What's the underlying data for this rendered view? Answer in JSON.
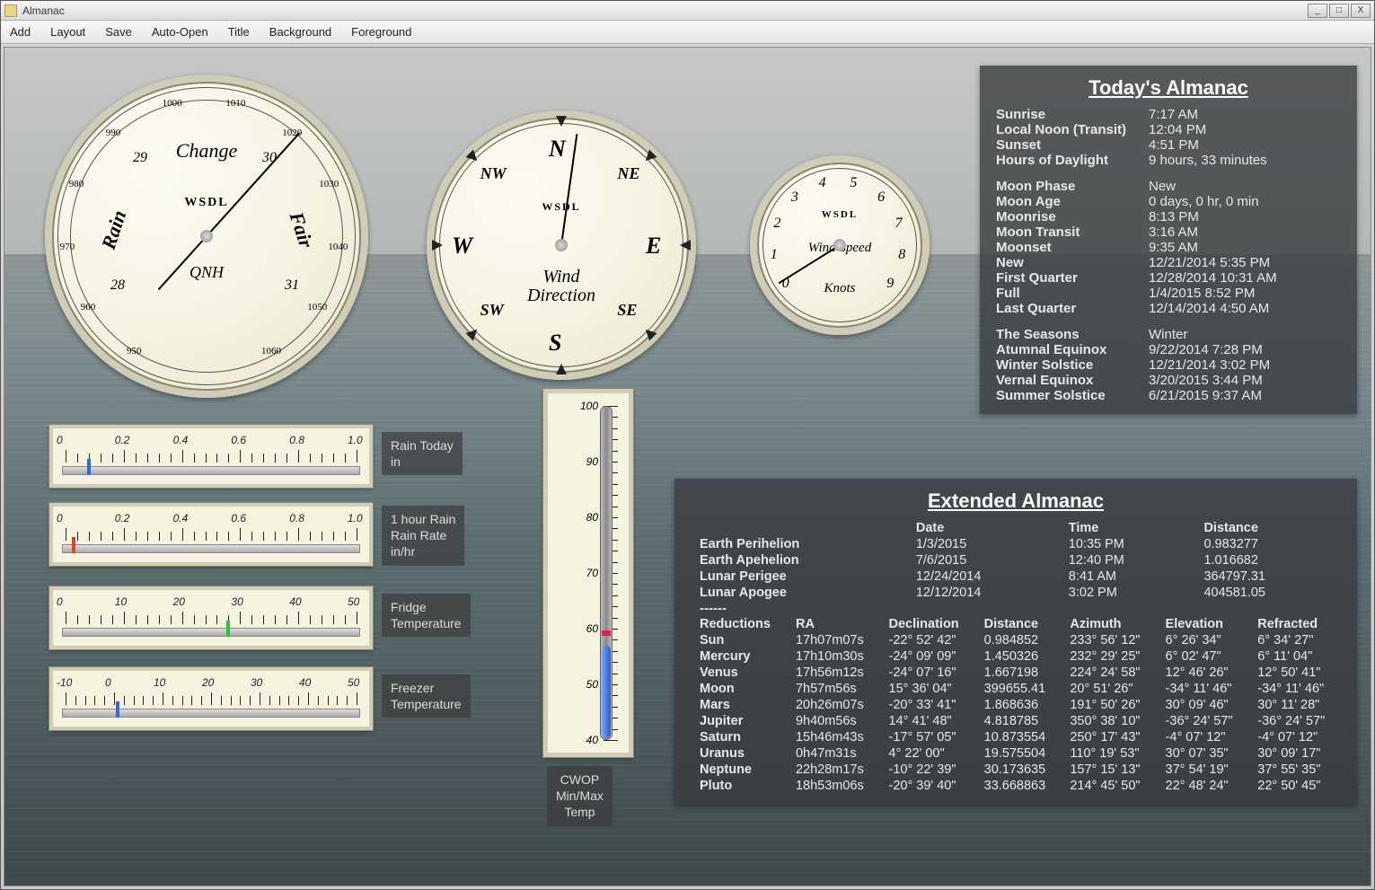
{
  "window": {
    "title": "Almanac"
  },
  "menu": [
    "Add",
    "Layout",
    "Save",
    "Auto-Open",
    "Title",
    "Background",
    "Foreground"
  ],
  "gauges": {
    "barometer": {
      "brand": "WSDL",
      "label": "QNH",
      "top_word": "Change",
      "left_word": "Rain",
      "right_word": "Fair",
      "needle_deg": 42,
      "outer_scale": [
        "950",
        "960",
        "970",
        "980",
        "990",
        "1000",
        "1010",
        "1020",
        "1030",
        "1040",
        "1050",
        "1060"
      ],
      "inner_scale": [
        "28",
        "29",
        "30",
        "31"
      ]
    },
    "winddir": {
      "brand": "WSDL",
      "label": "Wind Direction",
      "sub": "Direction",
      "needle_deg": 8,
      "cardinals": [
        "N",
        "NE",
        "E",
        "SE",
        "S",
        "SW",
        "W",
        "NW"
      ]
    },
    "windspeed": {
      "brand": "WSDL",
      "label": "Wind Speed",
      "units": "Knots",
      "needle_deg": 238,
      "scale": [
        "0",
        "1",
        "2",
        "3",
        "4",
        "5",
        "6",
        "7",
        "8",
        "9"
      ]
    }
  },
  "linear": {
    "rain_today": {
      "title": "Rain Today",
      "units": "in",
      "scale": [
        "0",
        "0.2",
        "0.4",
        "0.6",
        "0.8",
        "1.0"
      ],
      "marker_pct": 8,
      "marker_color": "#3a66d0"
    },
    "rain_rate": {
      "title": "1 hour Rain",
      "title2": "Rain Rate",
      "units": "in/hr",
      "scale": [
        "0",
        "0.2",
        "0.4",
        "0.6",
        "0.8",
        "1.0"
      ],
      "marker_pct": 3,
      "marker_color": "#d04a1e"
    },
    "fridge": {
      "title": "Fridge",
      "title2": "Temperature",
      "scale": [
        "0",
        "10",
        "20",
        "30",
        "40",
        "50"
      ],
      "marker_pct": 52,
      "marker_color": "#3cbf3c"
    },
    "freezer": {
      "title": "Freezer",
      "title2": "Temperature",
      "scale": [
        "-10",
        "0",
        "10",
        "20",
        "30",
        "40",
        "50"
      ],
      "marker_pct": 17,
      "marker_color": "#3a66d0"
    }
  },
  "thermo": {
    "title": "CWOP",
    "title2": "Min/Max",
    "title3": "Temp",
    "scale": [
      "100",
      "90",
      "80",
      "70",
      "60",
      "50",
      "40"
    ],
    "min_pct": 27,
    "max_pct": 30
  },
  "today": {
    "title": "Today's Almanac",
    "sun": [
      [
        "Sunrise",
        "7:17 AM"
      ],
      [
        "Local Noon (Transit)",
        "12:04 PM"
      ],
      [
        "Sunset",
        "4:51 PM"
      ],
      [
        "Hours of Daylight",
        "9 hours, 33 minutes"
      ]
    ],
    "moon": [
      [
        "Moon Phase",
        "New"
      ],
      [
        "Moon Age",
        "0 days, 0 hr, 0 min"
      ],
      [
        "Moonrise",
        "8:13 PM"
      ],
      [
        "Moon Transit",
        "3:16 AM"
      ],
      [
        "Moonset",
        "9:35 AM"
      ],
      [
        "New",
        "12/21/2014  5:35 PM"
      ],
      [
        "First Quarter",
        "12/28/2014  10:31 AM"
      ],
      [
        "Full",
        "1/4/2015  8:52 PM"
      ],
      [
        "Last Quarter",
        "12/14/2014  4:50 AM"
      ]
    ],
    "seasons": [
      [
        "The Seasons",
        "Winter"
      ],
      [
        "Atumnal Equinox",
        "9/22/2014  7:28 PM"
      ],
      [
        "Winter Solstice",
        "12/21/2014  3:02 PM"
      ],
      [
        "Vernal Equinox",
        "3/20/2015  3:44 PM"
      ],
      [
        "Summer Solstice",
        "6/21/2015  9:37 AM"
      ]
    ]
  },
  "extended": {
    "title": "Extended Almanac",
    "top_header": [
      "",
      "Date",
      "Time",
      "Distance"
    ],
    "top_rows": [
      [
        "Earth Perihelion",
        "1/3/2015",
        "10:35 PM",
        "0.983277"
      ],
      [
        "Earth Apehelion",
        "7/6/2015",
        "12:40 PM",
        "1.016682"
      ],
      [
        "Lunar Perigee",
        "12/24/2014",
        "8:41 AM",
        "364797.31"
      ],
      [
        "Lunar Apogee",
        "12/12/2014",
        "3:02 PM",
        "404581.05"
      ]
    ],
    "sep": "------",
    "bot_header": [
      "Reductions",
      "RA",
      "Declination",
      "Distance",
      "Azimuth",
      "Elevation",
      "Refracted"
    ],
    "bot_rows": [
      [
        "Sun",
        "17h07m07s",
        "-22° 52' 42\"",
        "0.984852",
        "233° 56' 12\"",
        "6° 26' 34\"",
        "6° 34' 27\""
      ],
      [
        "Mercury",
        "17h10m30s",
        "-24° 09' 09\"",
        "1.450326",
        "232° 29' 25\"",
        "6° 02' 47\"",
        "6° 11' 04\""
      ],
      [
        "Venus",
        "17h56m12s",
        "-24° 07' 16\"",
        "1.667198",
        "224° 24' 58\"",
        "12° 46' 26\"",
        "12° 50' 41\""
      ],
      [
        "Moon",
        "7h57m56s",
        "15° 36' 04\"",
        "399655.41",
        "20° 51' 26\"",
        "-34° 11' 46\"",
        "-34° 11' 46\""
      ],
      [
        "Mars",
        "20h26m07s",
        "-20° 33' 41\"",
        "1.868636",
        "191° 50' 26\"",
        "30° 09' 46\"",
        "30° 11' 28\""
      ],
      [
        "Jupiter",
        "9h40m56s",
        "14° 41' 48\"",
        "4.818785",
        "350° 38' 10\"",
        "-36° 24' 57\"",
        "-36° 24' 57\""
      ],
      [
        "Saturn",
        "15h46m43s",
        "-17° 57' 05\"",
        "10.873554",
        "250° 17' 43\"",
        "-4° 07' 12\"",
        "-4° 07' 12\""
      ],
      [
        "Uranus",
        "0h47m31s",
        "4° 22' 00\"",
        "19.575504",
        "110° 19' 53\"",
        "30° 07' 35\"",
        "30° 09' 17\""
      ],
      [
        "Neptune",
        "22h28m17s",
        "-10° 22' 39\"",
        "30.173635",
        "157° 15' 13\"",
        "37° 54' 19\"",
        "37° 55' 35\""
      ],
      [
        "Pluto",
        "18h53m06s",
        "-20° 39' 40\"",
        "33.668863",
        "214° 45' 50\"",
        "22° 48' 24\"",
        "22° 50' 45\""
      ]
    ]
  }
}
